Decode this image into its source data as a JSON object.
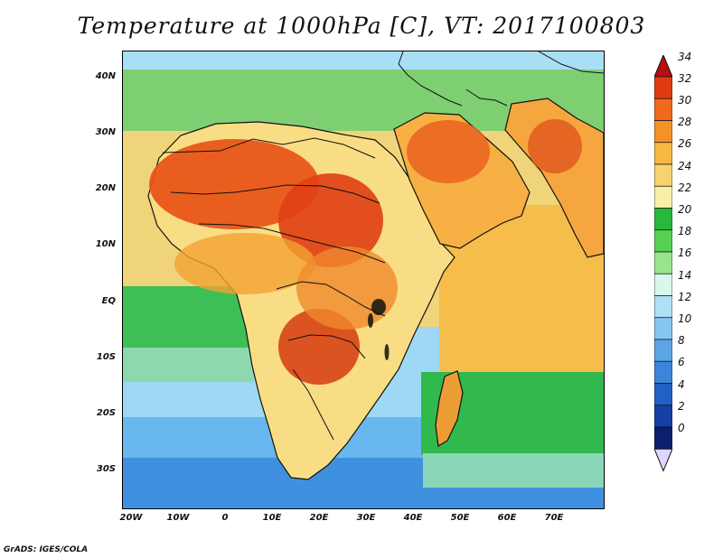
{
  "title": "Temperature at 1000hPa [C], VT: 2017100803",
  "credit": "GrADS: IGES/COLA",
  "latitude_labels": [
    "40N",
    "30N",
    "20N",
    "10N",
    "EQ",
    "10S",
    "20S",
    "30S"
  ],
  "longitude_labels": [
    "20W",
    "10W",
    "0",
    "10E",
    "20E",
    "30E",
    "40E",
    "50E",
    "60E",
    "70E"
  ],
  "colorbar": {
    "labels": [
      "34",
      "32",
      "30",
      "28",
      "26",
      "24",
      "22",
      "20",
      "18",
      "16",
      "14",
      "12",
      "10",
      "8",
      "6",
      "4",
      "2",
      "0"
    ],
    "colors": {
      "34": "#b80f0f",
      "32": "#df3a11",
      "30": "#ef6a1c",
      "28": "#f39327",
      "26": "#f7b743",
      "24": "#f8d26f",
      "22": "#f9efa8",
      "20": "#27b83c",
      "18": "#58d152",
      "16": "#96e58b",
      "14": "#d7f8ea",
      "12": "#aee0f7",
      "10": "#86c7f0",
      "8": "#5ca5e6",
      "6": "#3d85db",
      "4": "#2260c6",
      "2": "#163ea5",
      "0": "#0b1f6e"
    }
  }
}
